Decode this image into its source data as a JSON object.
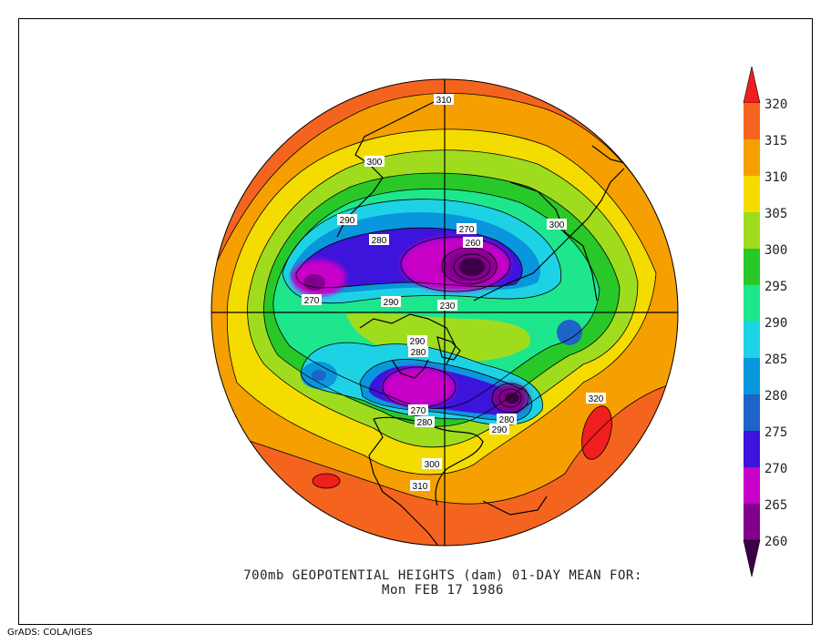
{
  "caption_line1": "700mb GEOPOTENTIAL HEIGHTS (dam)   01-DAY MEAN FOR:",
  "caption_line2": "Mon FEB 17 1986",
  "credit": "GrADS: COLA/IGES",
  "colorbar": {
    "levels": [
      {
        "label": "320",
        "color": "#f01e1e"
      },
      {
        "label": "315",
        "color": "#f5641e"
      },
      {
        "label": "310",
        "color": "#f5a000"
      },
      {
        "label": "305",
        "color": "#f5dc00"
      },
      {
        "label": "300",
        "color": "#a0dc1e"
      },
      {
        "label": "295",
        "color": "#28c828"
      },
      {
        "label": "290",
        "color": "#1ee68c"
      },
      {
        "label": "285",
        "color": "#1ed2e6"
      },
      {
        "label": "280",
        "color": "#0a96dc"
      },
      {
        "label": "275",
        "color": "#1e64c8"
      },
      {
        "label": "270",
        "color": "#3c14dc"
      },
      {
        "label": "265",
        "color": "#c800c8"
      },
      {
        "label": "260",
        "color": "#82008c"
      }
    ],
    "low_color": "#3c0046",
    "high_color": "#f01e1e"
  },
  "contour_labels": [
    "310",
    "300",
    "290",
    "280",
    "270",
    "260",
    "290",
    "230",
    "290",
    "280",
    "270",
    "280",
    "280",
    "290",
    "300",
    "310",
    "300",
    "320",
    "270"
  ]
}
